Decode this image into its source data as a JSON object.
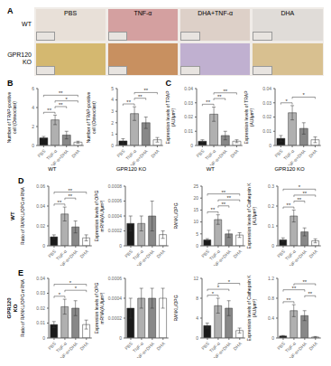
{
  "chart_data": [
    {
      "type": "image",
      "title": "A",
      "x": [
        "PBS",
        "TNF-α",
        "DHA+TNF-α",
        "DHA"
      ],
      "y": [
        "WT",
        "GPR120\nKO"
      ],
      "colors": [
        [
          "#e8e0d8",
          "#d4a0a0",
          "#ddd0c8",
          "#e0dcd8"
        ],
        [
          "#d4b870",
          "#c89060",
          "#c0b0d0",
          "#d8c090"
        ]
      ]
    },
    {
      "type": "bar",
      "title": "B",
      "ylabel": "Number of TRAP-positive\ncell (Osteoclast)",
      "xlabel": "WT",
      "categories": [
        "PBS",
        "TNF-α",
        "TNF-α+DHA",
        "DHA"
      ],
      "values": [
        0.8,
        2.7,
        1.1,
        0.35
      ],
      "errors": [
        0.15,
        0.5,
        0.4,
        0.1
      ],
      "colors": [
        "#1a1a1a",
        "#b0b0b0",
        "#888888",
        "#ffffff"
      ],
      "ylim": [
        0,
        6
      ],
      "yticks": [
        0,
        2,
        4,
        6
      ],
      "annotations": [
        {
          "text": "**",
          "from": "PBS",
          "to": "TNF-α"
        },
        {
          "text": "**",
          "from": "TNF-α",
          "to": "TNF-α+DHA"
        },
        {
          "text": "*",
          "from": "TNF-α",
          "to": "DHA"
        },
        {
          "text": "**",
          "from": "PBS",
          "to": "DHA"
        }
      ]
    },
    {
      "type": "bar",
      "ylabel": "Number of TRAP-positive\ncell (Osteoclast)",
      "xlabel": "GPR120 KO",
      "categories": [
        "PBS",
        "TNF-α",
        "TNF-α+DHA",
        "DHA"
      ],
      "values": [
        0.4,
        2.8,
        2.0,
        0.5
      ],
      "errors": [
        0.2,
        0.6,
        0.5,
        0.2
      ],
      "colors": [
        "#1a1a1a",
        "#b0b0b0",
        "#888888",
        "#ffffff"
      ],
      "ylim": [
        0,
        5
      ],
      "yticks": [
        0,
        1,
        2,
        3,
        4,
        5
      ],
      "annotations": [
        {
          "text": "**",
          "from": "PBS",
          "to": "TNF-α"
        },
        {
          "text": "**",
          "from": "TNF-α",
          "to": "TNF-α+DHA"
        },
        {
          "text": "**",
          "from": "TNF-α",
          "to": "DHA"
        }
      ]
    },
    {
      "type": "bar",
      "title": "C",
      "ylabel": "Expression levels of TRAP\n(AU/μm²)",
      "xlabel": "WT",
      "categories": [
        "PBS",
        "TNF-α",
        "TNF-α+DHA",
        "DHA"
      ],
      "values": [
        0.003,
        0.022,
        0.007,
        0.003
      ],
      "errors": [
        0.001,
        0.005,
        0.003,
        0.001
      ],
      "colors": [
        "#1a1a1a",
        "#b0b0b0",
        "#888888",
        "#ffffff"
      ],
      "ylim": [
        0,
        0.04
      ],
      "yticks": [
        0,
        0.01,
        0.02,
        0.03,
        0.04
      ],
      "annotations": [
        {
          "text": "**",
          "from": "PBS",
          "to": "TNF-α"
        },
        {
          "text": "**",
          "from": "TNF-α",
          "to": "TNF-α+DHA"
        },
        {
          "text": "**",
          "from": "TNF-α",
          "to": "DHA"
        }
      ]
    },
    {
      "type": "bar",
      "ylabel": "Expression levels of TRAP\n(AU/μm²)",
      "xlabel": "GPR120 KO",
      "categories": [
        "PBS",
        "TNF-α",
        "TNF-α+DHA",
        "DHA"
      ],
      "values": [
        0.005,
        0.023,
        0.012,
        0.004
      ],
      "errors": [
        0.002,
        0.005,
        0.004,
        0.002
      ],
      "colors": [
        "#1a1a1a",
        "#b0b0b0",
        "#888888",
        "#ffffff"
      ],
      "ylim": [
        0,
        0.04
      ],
      "yticks": [
        0,
        0.01,
        0.02,
        0.03,
        0.04
      ],
      "annotations": [
        {
          "text": "*",
          "from": "PBS",
          "to": "TNF-α"
        },
        {
          "text": "*",
          "from": "TNF-α",
          "to": "DHA"
        }
      ]
    },
    {
      "type": "bar",
      "title": "D",
      "ylabel": "Ratio of RANKL/OPG mRNA",
      "categories": [
        "PBS",
        "TNF-α",
        "TNF-α+DHA",
        "DHA"
      ],
      "values": [
        0.009,
        0.032,
        0.019,
        0.008
      ],
      "errors": [
        0.002,
        0.007,
        0.006,
        0.003
      ],
      "colors": [
        "#1a1a1a",
        "#b0b0b0",
        "#888888",
        "#ffffff"
      ],
      "ylim": [
        0,
        0.06
      ],
      "yticks": [
        0,
        0.02,
        0.04,
        0.06
      ],
      "annotations": [
        {
          "text": "WT"
        },
        {
          "text": "**",
          "from": "PBS",
          "to": "TNF-α"
        },
        {
          "text": "**",
          "from": "TNF-α",
          "to": "TNF-α+DHA"
        },
        {
          "text": "**",
          "from": "PBS",
          "to": "DHA"
        }
      ]
    },
    {
      "type": "bar",
      "ylabel": "Expression levels of OPG\nmRNA(AU/μm²)",
      "categories": [
        "PBS",
        "TNF-α",
        "TNF-α+DHA",
        "DHA"
      ],
      "values": [
        0.0003,
        0.0003,
        0.0004,
        0.00015
      ],
      "errors": [
        0.0001,
        0.0001,
        0.0002,
        5e-05
      ],
      "colors": [
        "#1a1a1a",
        "#b0b0b0",
        "#888888",
        "#ffffff"
      ],
      "ylim": [
        0,
        0.0008
      ],
      "yticks": [
        0,
        0.0002,
        0.0004,
        0.0006,
        0.0008
      ]
    },
    {
      "type": "bar",
      "ylabel": "RANKL/OPG",
      "categories": [
        "PBS",
        "TNF-α",
        "TNF-α+DHA",
        "DHA"
      ],
      "values": [
        2.5,
        11.0,
        5.0,
        4.5
      ],
      "errors": [
        0.5,
        2.0,
        1.5,
        1.0
      ],
      "colors": [
        "#1a1a1a",
        "#b0b0b0",
        "#888888",
        "#ffffff"
      ],
      "ylim": [
        0,
        25
      ],
      "yticks": [
        0,
        5,
        10,
        15,
        20,
        25
      ],
      "annotations": [
        {
          "text": "**",
          "from": "PBS",
          "to": "TNF-α"
        },
        {
          "text": "**",
          "from": "TNF-α",
          "to": "TNF-α+DHA"
        },
        {
          "text": "**",
          "from": "TNF-α",
          "to": "DHA"
        },
        {
          "text": "**",
          "from": "PBS",
          "to": "DHA"
        }
      ]
    },
    {
      "type": "bar",
      "ylabel": "Expression levels of Cathepsin K\n(AU/μm²)",
      "categories": [
        "PBS",
        "TNF-α",
        "TNF-α+DHA",
        "DHA"
      ],
      "values": [
        0.03,
        0.15,
        0.07,
        0.025
      ],
      "errors": [
        0.01,
        0.03,
        0.02,
        0.01
      ],
      "colors": [
        "#1a1a1a",
        "#b0b0b0",
        "#888888",
        "#ffffff"
      ],
      "ylim": [
        0,
        0.3
      ],
      "yticks": [
        0,
        0.1,
        0.2,
        0.3
      ],
      "annotations": [
        {
          "text": "**",
          "from": "PBS",
          "to": "TNF-α"
        },
        {
          "text": "**",
          "from": "TNF-α",
          "to": "TNF-α+DHA"
        },
        {
          "text": "**",
          "from": "TNF-α",
          "to": "DHA"
        },
        {
          "text": "*",
          "from": "PBS",
          "to": "DHA"
        }
      ]
    },
    {
      "type": "bar",
      "title": "E",
      "ylabel": "Ratio of RANKL/OPG mRNA",
      "categories": [
        "PBS",
        "TNF-α",
        "TNF-α+DHA",
        "DHA"
      ],
      "values": [
        0.009,
        0.021,
        0.02,
        0.009
      ],
      "errors": [
        0.002,
        0.005,
        0.005,
        0.003
      ],
      "colors": [
        "#1a1a1a",
        "#b0b0b0",
        "#888888",
        "#ffffff"
      ],
      "ylim": [
        0,
        0.04
      ],
      "yticks": [
        0,
        0.01,
        0.02,
        0.03,
        0.04
      ],
      "annotations": [
        {
          "text": "GPR120\nKO"
        },
        {
          "text": "*",
          "from": "PBS",
          "to": "TNF-α"
        },
        {
          "text": "*",
          "from": "TNF-α",
          "to": "DHA"
        },
        {
          "text": "*",
          "from": "PBS",
          "to": "DHA"
        }
      ]
    },
    {
      "type": "bar",
      "ylabel": "Expression levels of OPG\nmRNA(AU/μm²)",
      "categories": [
        "PBS",
        "TNF-α",
        "TNF-α+DHA",
        "DHA"
      ],
      "values": [
        0.0003,
        0.0004,
        0.0004,
        0.0004
      ],
      "errors": [
        0.0001,
        0.0001,
        0.0001,
        0.0001
      ],
      "colors": [
        "#1a1a1a",
        "#b0b0b0",
        "#888888",
        "#ffffff"
      ],
      "ylim": [
        0,
        0.0006
      ],
      "yticks": [
        0,
        0.0002,
        0.0004,
        0.0006
      ]
    },
    {
      "type": "bar",
      "ylabel": "RANKL/OPG",
      "categories": [
        "PBS",
        "TNF-α",
        "TNF-α+DHA",
        "DHA"
      ],
      "values": [
        2.5,
        6.5,
        6.0,
        1.5
      ],
      "errors": [
        0.5,
        1.5,
        1.5,
        0.5
      ],
      "colors": [
        "#1a1a1a",
        "#b0b0b0",
        "#888888",
        "#ffffff"
      ],
      "ylim": [
        0,
        12
      ],
      "yticks": [
        0,
        4,
        8,
        12
      ],
      "annotations": [
        {
          "text": "*",
          "from": "PBS",
          "to": "TNF-α"
        },
        {
          "text": "*",
          "from": "PBS",
          "to": "TNF-α+DHA"
        },
        {
          "text": "*",
          "from": "TNF-α",
          "to": "DHA"
        }
      ]
    },
    {
      "type": "bar",
      "ylabel": "Expression levels of Cathepsin K\n(AU/μm²)",
      "categories": [
        "PBS",
        "TNF-α",
        "TNF-α+DHA",
        "DHA"
      ],
      "values": [
        0.04,
        0.55,
        0.45,
        0.02
      ],
      "errors": [
        0.01,
        0.12,
        0.1,
        0.01
      ],
      "colors": [
        "#1a1a1a",
        "#b0b0b0",
        "#888888",
        "#ffffff"
      ],
      "ylim": [
        0,
        1.2
      ],
      "yticks": [
        0,
        0.4,
        0.8,
        1.2
      ],
      "annotations": [
        {
          "text": "**",
          "from": "PBS",
          "to": "TNF-α"
        },
        {
          "text": "**",
          "from": "TNF-α+DHA",
          "to": "DHA"
        },
        {
          "text": "**",
          "from": "PBS",
          "to": "TNF-α+DHA"
        },
        {
          "text": "**",
          "from": "TNF-α",
          "to": "DHA"
        }
      ]
    }
  ]
}
